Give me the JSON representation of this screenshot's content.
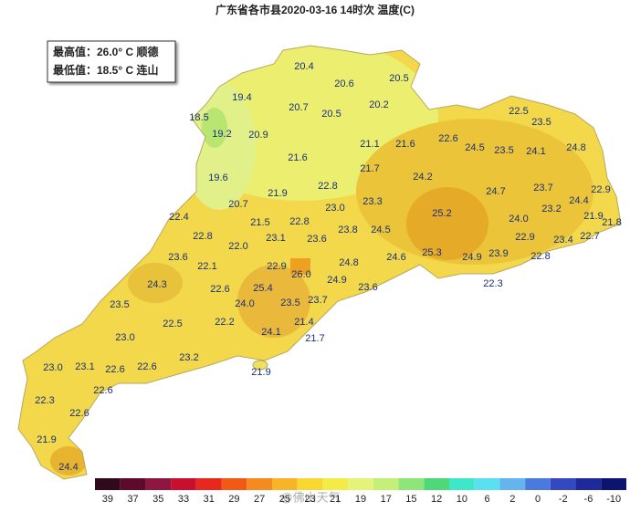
{
  "title": "广东省各市县2020-03-16 14时次 温度(C)",
  "info": {
    "max": "最高值：26.0° C 顺德",
    "min": "最低值：18.5° C 连山"
  },
  "stations": [
    "20.4",
    "20.6",
    "20.5",
    "19.4",
    "20.7",
    "20.5",
    "20.2",
    "18.5",
    "19.2",
    "20.9",
    "21.1",
    "21.6",
    "22.6",
    "22.5",
    "23.5",
    "24.5",
    "23.5",
    "24.1",
    "24.8",
    "21.6",
    "21.7",
    "19.6",
    "24.2",
    "22.8",
    "24.7",
    "23.7",
    "22.9",
    "21.9",
    "20.7",
    "23.3",
    "23.0",
    "24.4",
    "25.2",
    "23.2",
    "22.4",
    "21.5",
    "22.8",
    "23.8",
    "24.0",
    "21.9",
    "21.8",
    "24.5",
    "22.8",
    "22.0",
    "23.1",
    "23.6",
    "22.9",
    "22.7",
    "23.4",
    "23.6",
    "24.6",
    "25.3",
    "24.9",
    "23.9",
    "22.8",
    "22.1",
    "22.9",
    "24.8",
    "26.0",
    "24.9",
    "22.3",
    "24.3",
    "22.6",
    "25.4",
    "23.6",
    "24.0",
    "23.5",
    "23.7",
    "23.5",
    "22.2",
    "21.4",
    "22.5",
    "24.1",
    "23.0",
    "21.7",
    "23.2",
    "23.0",
    "23.1",
    "22.6",
    "22.6",
    "21.9",
    "22.6",
    "22.3",
    "22.6",
    "21.9",
    "24.4"
  ],
  "watermark": "@佛山天气",
  "legend": {
    "values": [
      39,
      37,
      35,
      33,
      31,
      29,
      27,
      25,
      23,
      21,
      19,
      17,
      15,
      12,
      10,
      6,
      2,
      0,
      -2,
      -6,
      -10
    ],
    "colors": [
      "#2e0a1a",
      "#5e0a2a",
      "#8e1640",
      "#c8102e",
      "#e8281e",
      "#f05a14",
      "#f58a1e",
      "#f8b428",
      "#f8d830",
      "#f4ec46",
      "#e4f47a",
      "#c4f07a",
      "#8ee67a",
      "#4ed87a",
      "#3ce8c8",
      "#5ae0f0",
      "#64b4f0",
      "#4a7ae0",
      "#3448c0",
      "#1e2a9a",
      "#0c1470"
    ]
  }
}
